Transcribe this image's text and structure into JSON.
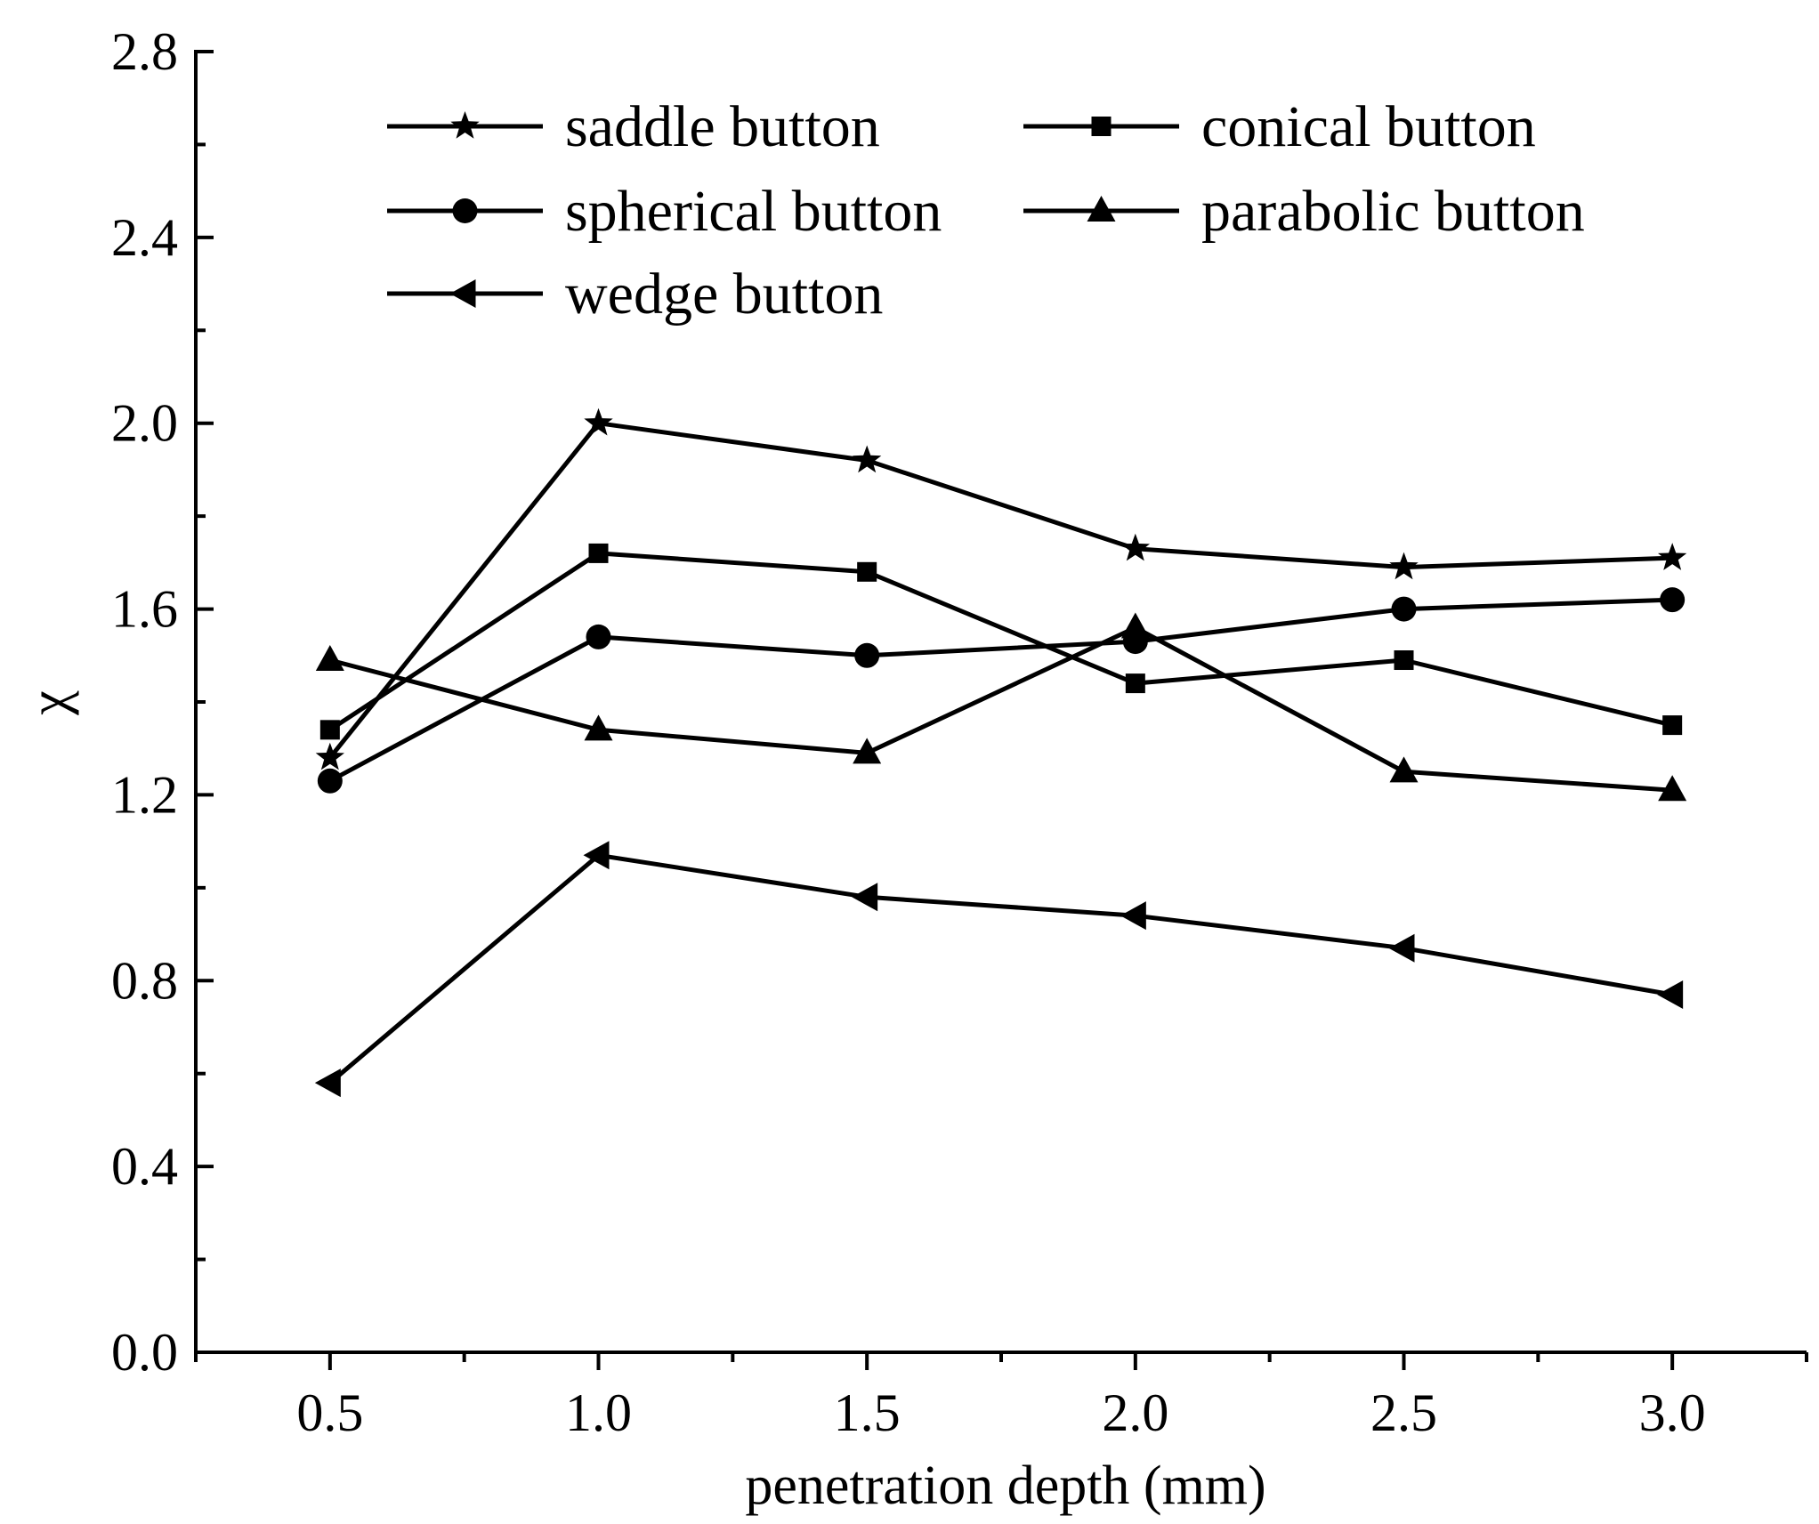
{
  "chart_data": {
    "type": "line",
    "title": "",
    "xlabel": "penetration depth (mm)",
    "ylabel": "χ",
    "x": [
      0.5,
      1.0,
      1.5,
      2.0,
      2.5,
      3.0
    ],
    "xlim": [
      0.25,
      3.25
    ],
    "ylim": [
      0.0,
      2.8
    ],
    "xticks": [
      0.5,
      1.0,
      1.5,
      2.0,
      2.5,
      3.0
    ],
    "xtick_labels": [
      "0.5",
      "1.0",
      "1.5",
      "2.0",
      "2.5",
      "3.0"
    ],
    "yticks": [
      0.0,
      0.4,
      0.8,
      1.2,
      1.6,
      2.0,
      2.4,
      2.8
    ],
    "ytick_labels": [
      "0.0",
      "0.4",
      "0.8",
      "1.2",
      "1.6",
      "2.0",
      "2.4",
      "2.8"
    ],
    "grid": false,
    "legend_position": "top-left",
    "series": [
      {
        "name": "saddle button",
        "marker": "star",
        "values": [
          1.28,
          2.0,
          1.92,
          1.73,
          1.69,
          1.71
        ]
      },
      {
        "name": "conical button",
        "marker": "square",
        "values": [
          1.34,
          1.72,
          1.68,
          1.44,
          1.49,
          1.35
        ]
      },
      {
        "name": "spherical button",
        "marker": "circle",
        "values": [
          1.23,
          1.54,
          1.5,
          1.53,
          1.6,
          1.62
        ]
      },
      {
        "name": "parabolic button",
        "marker": "triangle-up",
        "values": [
          1.49,
          1.34,
          1.29,
          1.56,
          1.25,
          1.21
        ]
      },
      {
        "name": "wedge button",
        "marker": "triangle-left",
        "values": [
          0.58,
          1.07,
          0.98,
          0.94,
          0.87,
          0.77
        ]
      }
    ],
    "colors": {
      "line": "#000000",
      "background": "#ffffff"
    }
  }
}
